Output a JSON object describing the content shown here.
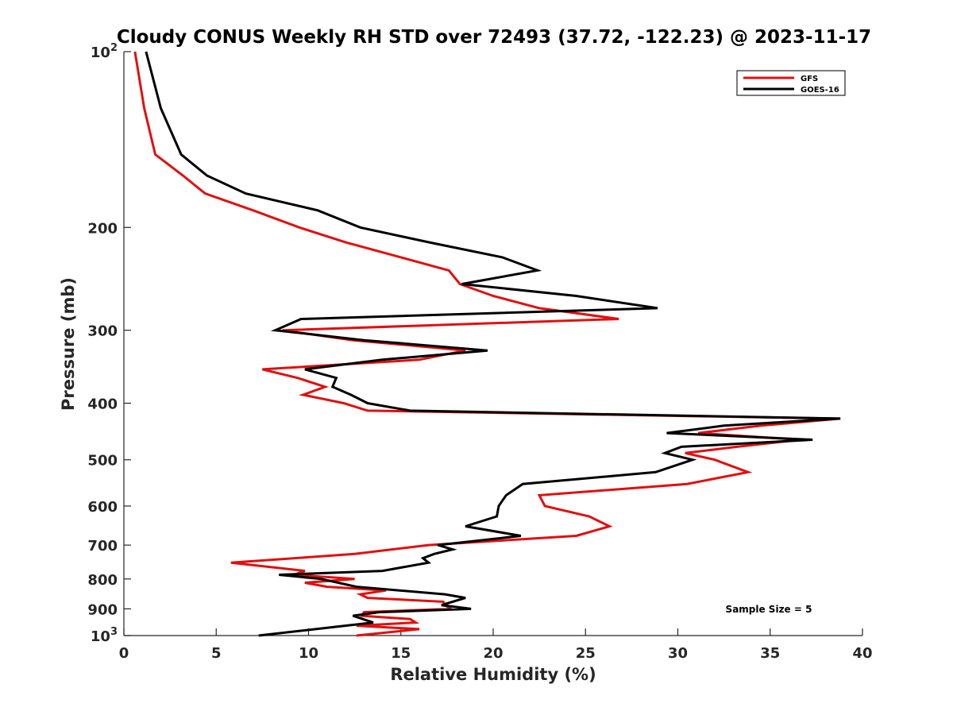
{
  "chart_data": {
    "type": "line",
    "title": "Cloudy CONUS Weekly RH STD over 72493 (37.72, -122.23) @ 2023-11-17",
    "xlabel": "Relative Humidity (%)",
    "ylabel": "Pressure (mb)",
    "xlim": [
      0,
      40
    ],
    "ylim": [
      100,
      1000
    ],
    "y_scale": "log",
    "y_reversed": true,
    "x_ticks": [
      0,
      5,
      10,
      15,
      20,
      25,
      30,
      35,
      40
    ],
    "x_tick_labels": [
      "0",
      "5",
      "10",
      "15",
      "20",
      "25",
      "30",
      "35",
      "40"
    ],
    "y_ticks": [
      100,
      200,
      300,
      400,
      500,
      600,
      700,
      800,
      900,
      1000
    ],
    "y_tick_labels": [
      {
        "base": "10",
        "exp": "2"
      },
      {
        "base": "200",
        "exp": ""
      },
      {
        "base": "300",
        "exp": ""
      },
      {
        "base": "400",
        "exp": ""
      },
      {
        "base": "500",
        "exp": ""
      },
      {
        "base": "600",
        "exp": ""
      },
      {
        "base": "700",
        "exp": ""
      },
      {
        "base": "800",
        "exp": ""
      },
      {
        "base": "900",
        "exp": ""
      },
      {
        "base": "10",
        "exp": "3"
      }
    ],
    "grid": false,
    "legend_position": "top-right",
    "annotation": "Sample Size = 5",
    "series": [
      {
        "name": "GFS",
        "color": "#e01010",
        "points": [
          [
            0.6,
            100
          ],
          [
            1.1,
            125
          ],
          [
            1.7,
            150
          ],
          [
            3.2,
            163
          ],
          [
            4.4,
            175
          ],
          [
            7.0,
            187
          ],
          [
            9.5,
            200
          ],
          [
            12.0,
            212
          ],
          [
            15.0,
            225
          ],
          [
            17.6,
            237
          ],
          [
            18.2,
            250
          ],
          [
            20.0,
            262
          ],
          [
            22.5,
            275
          ],
          [
            26.8,
            287
          ],
          [
            8.6,
            300
          ],
          [
            12.4,
            312
          ],
          [
            18.5,
            325
          ],
          [
            16.0,
            337
          ],
          [
            7.5,
            350
          ],
          [
            9.4,
            362
          ],
          [
            10.9,
            375
          ],
          [
            9.7,
            387
          ],
          [
            11.9,
            400
          ],
          [
            13.2,
            412
          ],
          [
            38.8,
            425
          ],
          [
            34.5,
            437
          ],
          [
            31.1,
            450
          ],
          [
            36.6,
            462
          ],
          [
            33.2,
            475
          ],
          [
            30.4,
            487
          ],
          [
            32.0,
            500
          ],
          [
            33.8,
            525
          ],
          [
            30.5,
            550
          ],
          [
            22.5,
            575
          ],
          [
            22.8,
            600
          ],
          [
            25.2,
            625
          ],
          [
            26.3,
            650
          ],
          [
            24.5,
            675
          ],
          [
            16.5,
            700
          ],
          [
            12.5,
            725
          ],
          [
            5.8,
            750
          ],
          [
            9.8,
            775
          ],
          [
            9.2,
            787
          ],
          [
            12.5,
            800
          ],
          [
            9.8,
            812
          ],
          [
            11.0,
            825
          ],
          [
            14.2,
            837
          ],
          [
            12.8,
            850
          ],
          [
            13.2,
            862
          ],
          [
            17.3,
            875
          ],
          [
            17.4,
            887
          ],
          [
            17.7,
            900
          ],
          [
            13.0,
            912
          ],
          [
            12.9,
            925
          ],
          [
            15.5,
            937
          ],
          [
            15.8,
            950
          ],
          [
            12.6,
            962
          ],
          [
            16.0,
            975
          ],
          [
            12.6,
            1000
          ]
        ]
      },
      {
        "name": "GOES-16",
        "color": "#000000",
        "points": [
          [
            1.2,
            100
          ],
          [
            2.0,
            125
          ],
          [
            3.1,
            150
          ],
          [
            4.5,
            163
          ],
          [
            6.6,
            175
          ],
          [
            10.5,
            187
          ],
          [
            12.8,
            200
          ],
          [
            16.5,
            212
          ],
          [
            20.5,
            225
          ],
          [
            22.4,
            237
          ],
          [
            18.3,
            250
          ],
          [
            24.5,
            262
          ],
          [
            28.9,
            275
          ],
          [
            9.6,
            287
          ],
          [
            8.2,
            300
          ],
          [
            13.0,
            312
          ],
          [
            19.7,
            325
          ],
          [
            14.0,
            337
          ],
          [
            9.8,
            350
          ],
          [
            11.5,
            362
          ],
          [
            11.3,
            375
          ],
          [
            12.3,
            387
          ],
          [
            13.2,
            400
          ],
          [
            15.5,
            412
          ],
          [
            38.8,
            425
          ],
          [
            32.5,
            437
          ],
          [
            29.4,
            450
          ],
          [
            37.3,
            462
          ],
          [
            30.2,
            475
          ],
          [
            29.3,
            487
          ],
          [
            30.8,
            500
          ],
          [
            28.8,
            525
          ],
          [
            21.6,
            550
          ],
          [
            20.7,
            575
          ],
          [
            20.3,
            600
          ],
          [
            20.2,
            625
          ],
          [
            18.5,
            650
          ],
          [
            21.5,
            675
          ],
          [
            17.0,
            700
          ],
          [
            17.8,
            712
          ],
          [
            16.8,
            725
          ],
          [
            16.2,
            737
          ],
          [
            16.5,
            750
          ],
          [
            14.0,
            775
          ],
          [
            8.4,
            787
          ],
          [
            10.7,
            800
          ],
          [
            12.6,
            825
          ],
          [
            17.4,
            850
          ],
          [
            18.5,
            862
          ],
          [
            17.2,
            887
          ],
          [
            18.8,
            900
          ],
          [
            13.8,
            912
          ],
          [
            12.4,
            925
          ],
          [
            13.5,
            950
          ],
          [
            7.3,
            1000
          ]
        ]
      }
    ]
  }
}
